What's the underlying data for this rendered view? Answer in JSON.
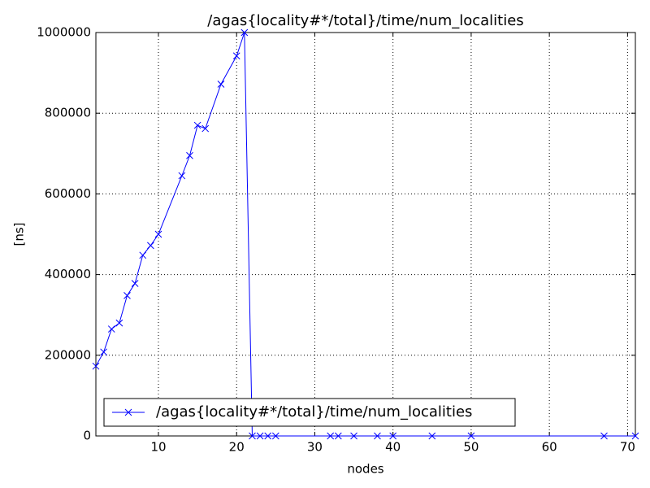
{
  "chart_data": {
    "type": "line",
    "title": "/agas{locality#*/total}/time/num_localities",
    "x_label": "nodes",
    "y_label": "[ns]",
    "x": [
      2,
      3,
      4,
      5,
      6,
      7,
      8,
      9,
      10,
      13,
      14,
      15,
      16,
      18,
      20,
      21,
      22,
      23,
      24,
      25,
      32,
      33,
      35,
      38,
      40,
      45,
      50,
      67,
      71
    ],
    "series": [
      {
        "name": "/agas{locality#*/total}/time/num_localities",
        "color": "#0000ff",
        "values": [
          173000,
          208000,
          265000,
          280000,
          348000,
          378000,
          448000,
          472000,
          500000,
          645000,
          695000,
          770000,
          762000,
          872000,
          942000,
          1000000,
          0,
          0,
          0,
          0,
          0,
          0,
          0,
          0,
          0,
          0,
          0,
          0,
          0
        ]
      }
    ],
    "xlim": [
      2,
      71
    ],
    "xticks": [
      10,
      20,
      30,
      40,
      50,
      60,
      70
    ],
    "ylim": [
      0,
      1000000
    ],
    "yticks": [
      0,
      200000,
      400000,
      600000,
      800000,
      1000000
    ],
    "grid": true,
    "legend": "lower left"
  }
}
